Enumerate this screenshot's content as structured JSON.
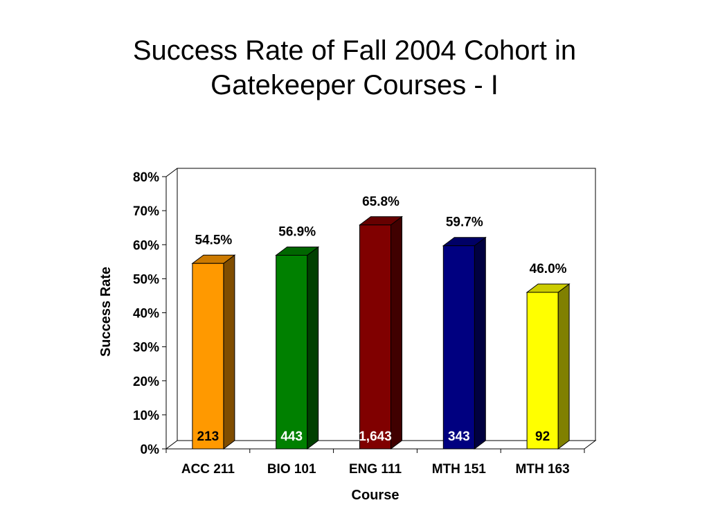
{
  "slide": {
    "title_line1": "Success Rate of Fall 2004 Cohort in",
    "title_line2": "Gatekeeper Courses - I"
  },
  "chart_data": {
    "type": "bar",
    "xlabel": "Course",
    "ylabel": "Success Rate",
    "ylim": [
      0,
      80
    ],
    "yticks": [
      "0%",
      "10%",
      "20%",
      "30%",
      "40%",
      "50%",
      "60%",
      "70%",
      "80%"
    ],
    "categories": [
      "ACC 211",
      "BIO 101",
      "ENG 111",
      "MTH 151",
      "MTH 163"
    ],
    "values": [
      54.5,
      56.9,
      65.8,
      59.7,
      46.0
    ],
    "value_labels": [
      "54.5%",
      "56.9%",
      "65.8%",
      "59.7%",
      "46.0%"
    ],
    "counts": [
      "213",
      "443",
      "1,643",
      "343",
      "92"
    ],
    "colors": [
      "#FF9900",
      "#008000",
      "#800000",
      "#000080",
      "#FFFF00"
    ],
    "count_label_colors": [
      "#000000",
      "#FFFFFF",
      "#FFFFFF",
      "#FFFFFF",
      "#000000"
    ],
    "grid": false,
    "legend": "none"
  }
}
